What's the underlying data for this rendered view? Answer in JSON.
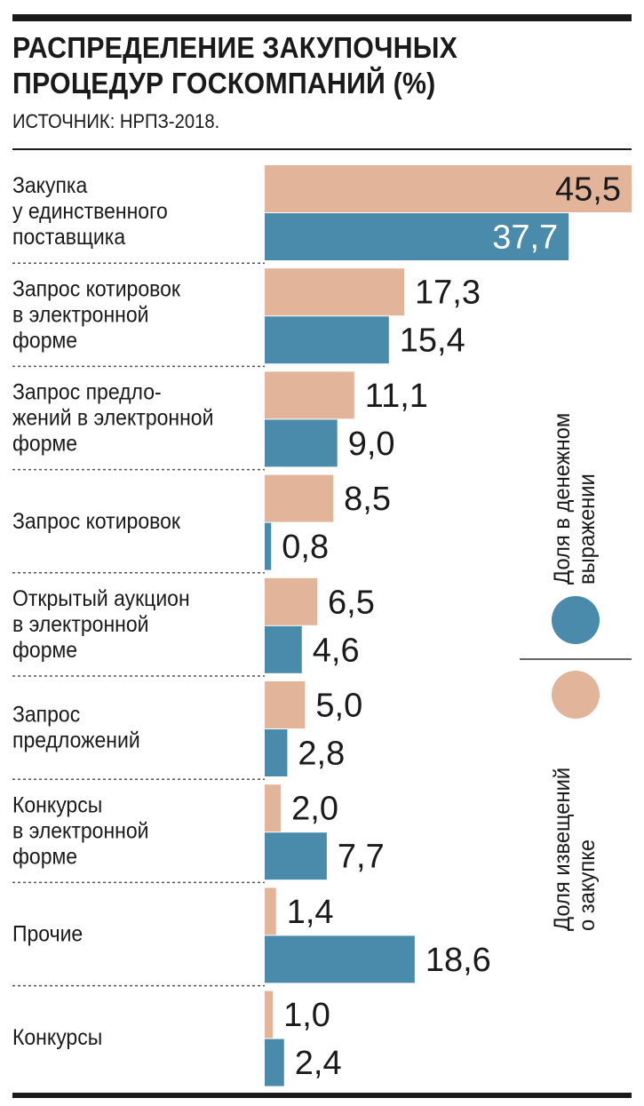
{
  "header": {
    "title": "РАСПРЕДЕЛЕНИЕ ЗАКУПОЧНЫХ\nПРОЦЕДУР ГОСКОМПАНИЙ (%)",
    "source": "ИСТОЧНИК: НРПЗ-2018."
  },
  "chart_data": {
    "type": "bar",
    "orientation": "horizontal",
    "title": "РАСПРЕДЕЛЕНИЕ ЗАКУПОЧНЫХ ПРОЦЕДУР ГОСКОМПАНИЙ (%)",
    "categories": [
      "Закупка\nу единственного\nпоставщика",
      "Запрос котировок\nв электронной\nформе",
      "Запрос предло-\nжений в электронной\nформе",
      "Запрос котировок",
      "Открытый аукцион\nв электронной\nформе",
      "Запрос\nпредложений",
      "Конкурсы\nв электронной\nформе",
      "Прочие",
      "Конкурсы"
    ],
    "series": [
      {
        "name": "Доля извещений о закупке",
        "color": "#e2b49a",
        "values": [
          45.5,
          17.3,
          11.1,
          8.5,
          6.5,
          5.0,
          2.0,
          1.4,
          1.0
        ],
        "labels": [
          "45,5",
          "17,3",
          "11,1",
          "8,5",
          "6,5",
          "5,0",
          "2,0",
          "1,4",
          "1,0"
        ]
      },
      {
        "name": "Доля в денежном выражении",
        "color": "#4a8bab",
        "values": [
          37.7,
          15.4,
          9.0,
          0.8,
          4.6,
          2.8,
          7.7,
          18.6,
          2.4
        ],
        "labels": [
          "37,7",
          "15,4",
          "9,0",
          "0,8",
          "4,6",
          "2,8",
          "7,7",
          "18,6",
          "2,4"
        ]
      }
    ],
    "xlim": [
      0,
      45.5
    ],
    "legend": {
      "placement": "right-vertical",
      "money": [
        "Доля в денежном",
        "выражении"
      ],
      "notices": [
        "Доля извещений",
        "о закупке"
      ]
    }
  }
}
